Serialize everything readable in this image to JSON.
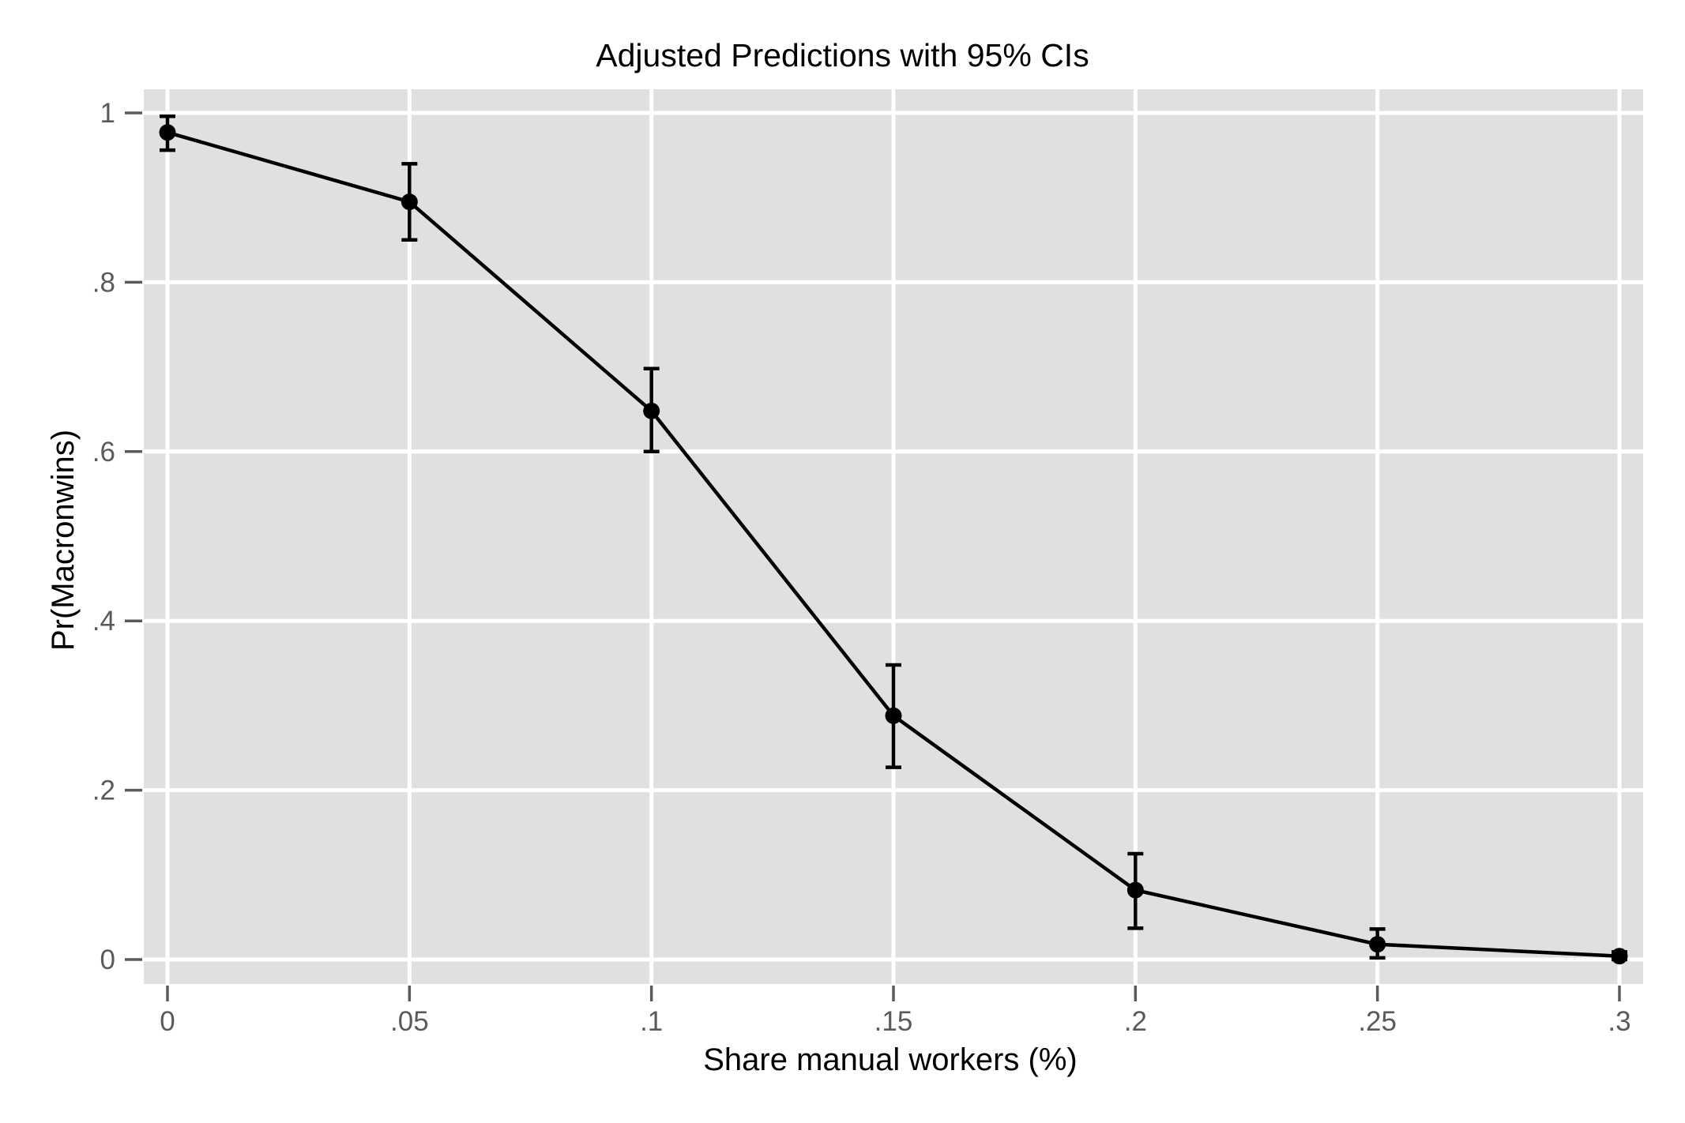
{
  "chart_data": {
    "type": "line",
    "title": "Adjusted Predictions with 95% CIs",
    "xlabel": "Share manual workers (%)",
    "ylabel": "Pr(Macronwins)",
    "x": [
      0,
      0.05,
      0.1,
      0.15,
      0.2,
      0.25,
      0.3
    ],
    "series": [
      {
        "name": "Adjusted prediction with 95% CI",
        "values": [
          0.977,
          0.895,
          0.648,
          0.288,
          0.082,
          0.018,
          0.004
        ],
        "ci_low": [
          0.956,
          0.85,
          0.6,
          0.227,
          0.037,
          0.002,
          0.0
        ],
        "ci_high": [
          0.996,
          0.94,
          0.698,
          0.348,
          0.125,
          0.036,
          0.009
        ]
      }
    ],
    "x_ticks": {
      "values": [
        0,
        0.05,
        0.1,
        0.15,
        0.2,
        0.25,
        0.3
      ],
      "labels": [
        "0",
        ".05",
        ".1",
        ".15",
        ".2",
        ".25",
        ".3"
      ]
    },
    "y_ticks": {
      "values": [
        0,
        0.2,
        0.4,
        0.6,
        0.8,
        1
      ],
      "labels": [
        "0",
        ".2",
        ".4",
        ".6",
        ".8",
        "1"
      ]
    },
    "xlim": [
      0,
      0.3
    ],
    "ylim": [
      0,
      1
    ],
    "grid": true,
    "legend": "none",
    "marker": "filled-circle",
    "colors": {
      "series": "#000000",
      "plot_background": "#e0e0e0",
      "gridline": "#ffffff",
      "tick": "#5a5a5a",
      "text": "#000000"
    }
  }
}
